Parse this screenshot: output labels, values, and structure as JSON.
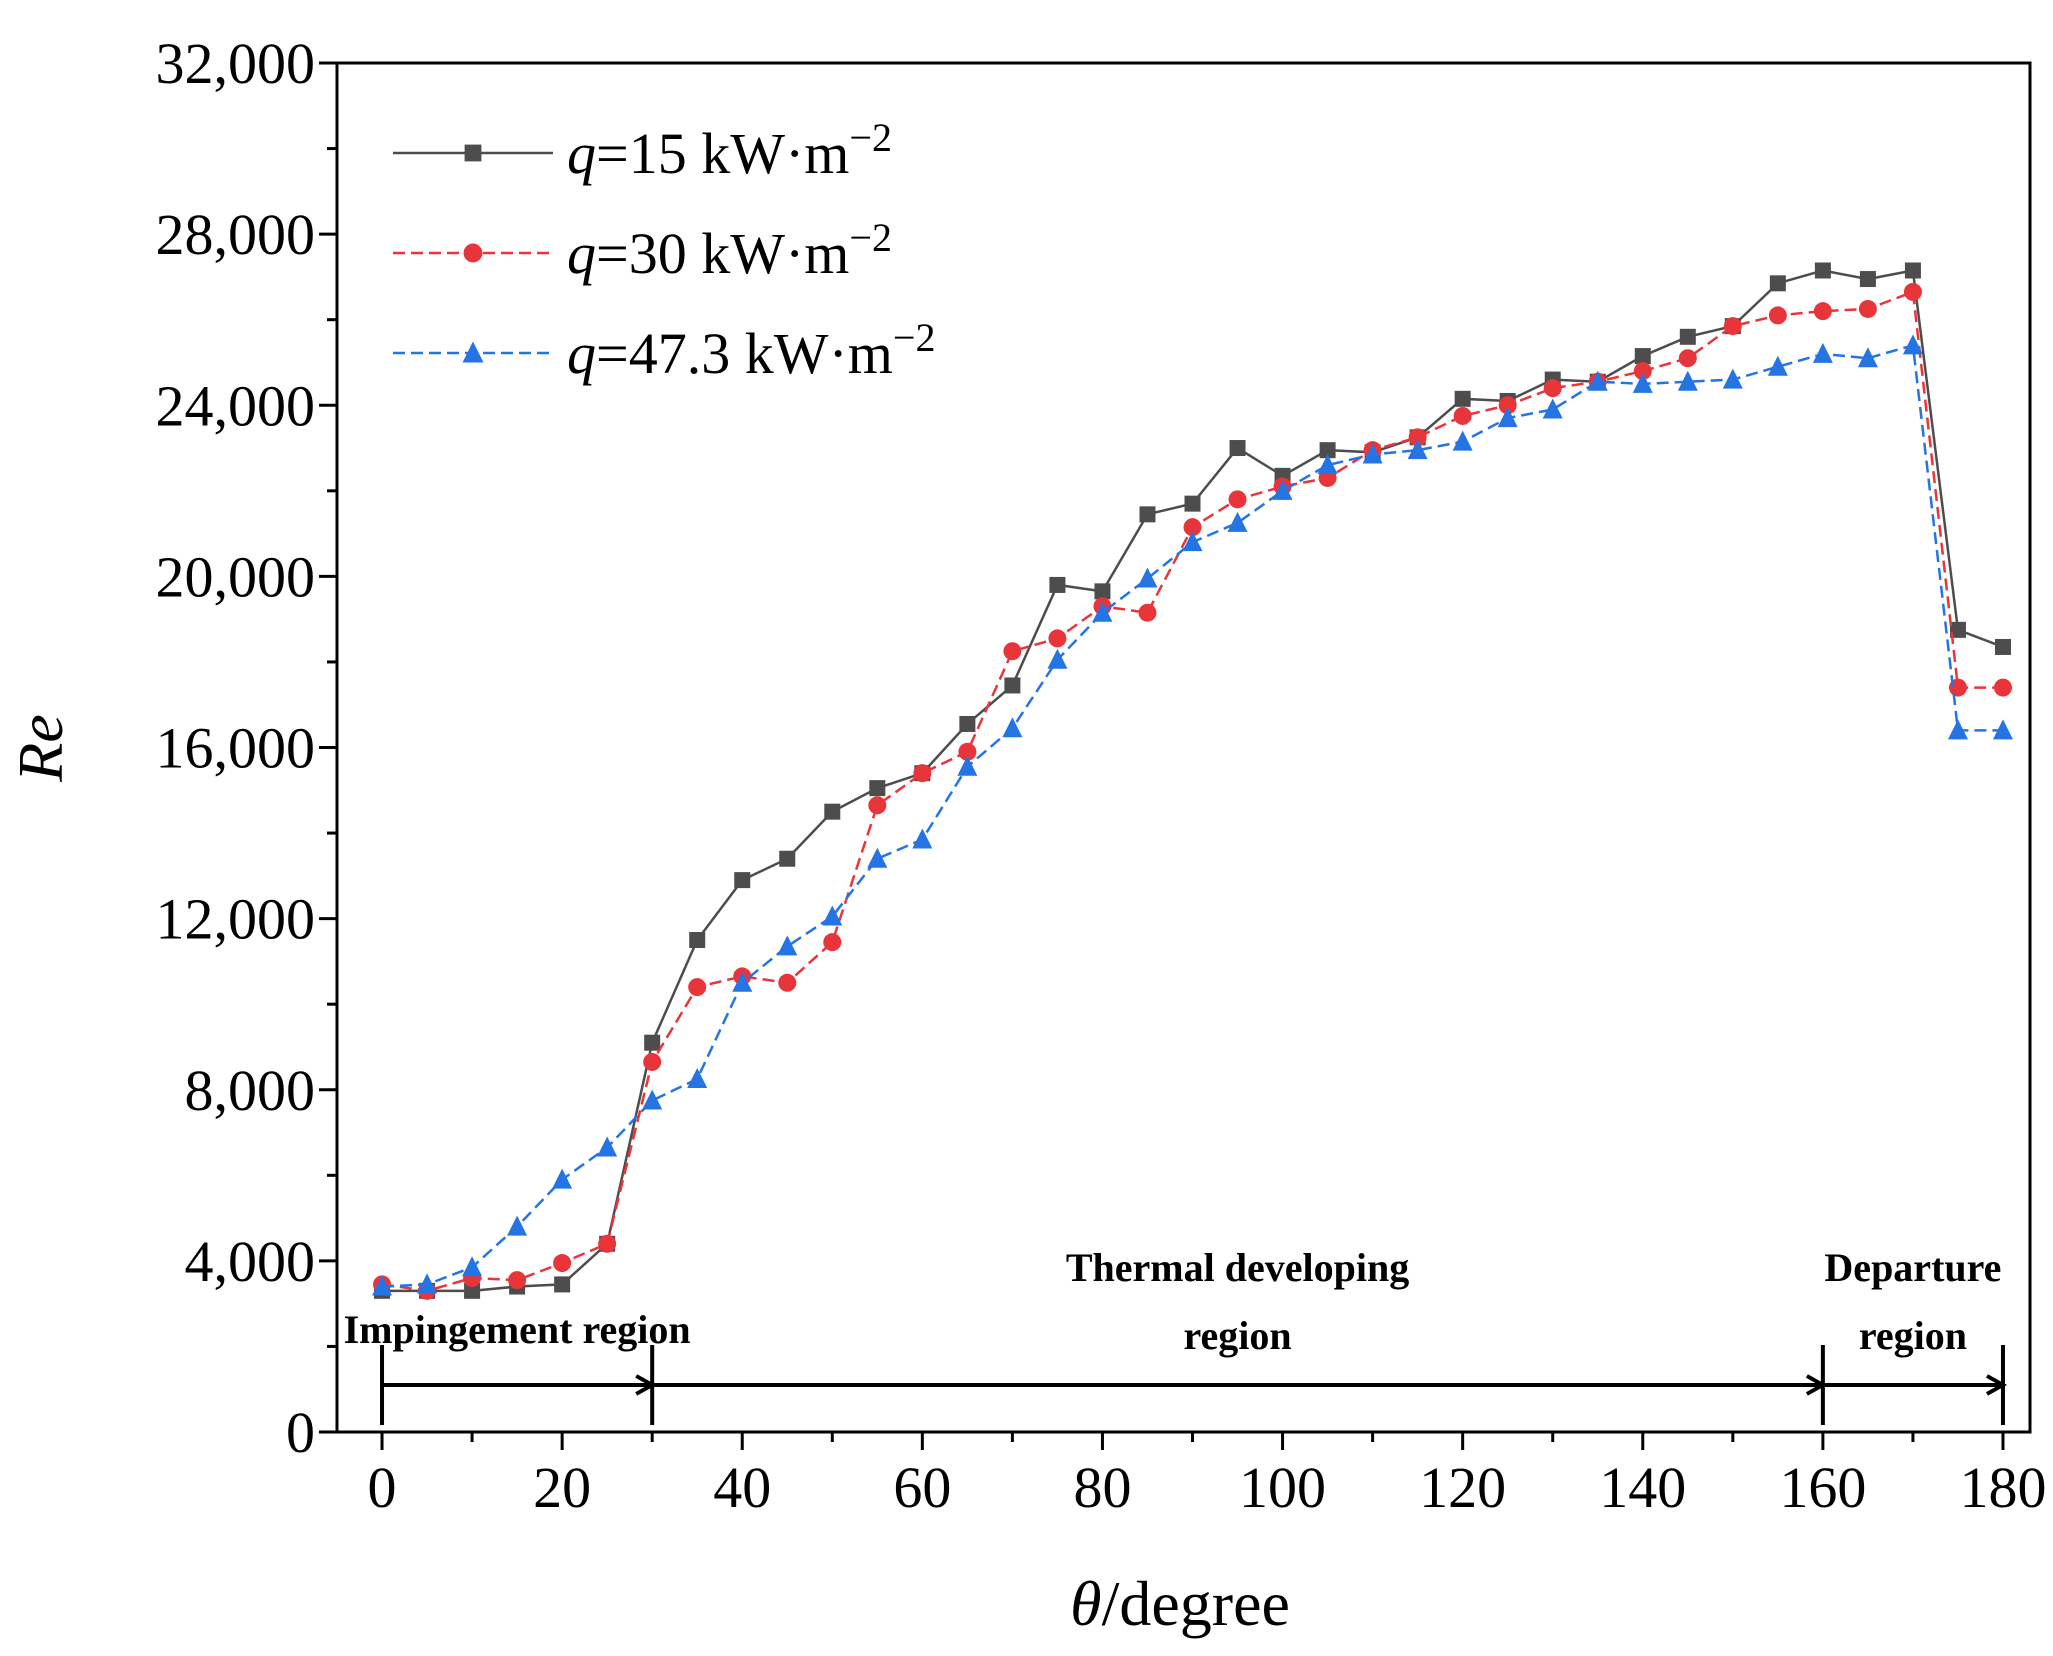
{
  "chart_data": {
    "type": "line",
    "title": "",
    "xlabel": "θ/degree",
    "xlabel_symbol": "θ",
    "xlabel_rest": "/degree",
    "ylabel": "Re",
    "xlim": [
      -5,
      183
    ],
    "ylim": [
      0,
      32000
    ],
    "xticks": [
      0,
      20,
      40,
      60,
      80,
      100,
      120,
      140,
      160,
      180
    ],
    "xtick_labels": [
      "0",
      "20",
      "40",
      "60",
      "80",
      "100",
      "120",
      "140",
      "160",
      "180"
    ],
    "yticks": [
      0,
      4000,
      8000,
      12000,
      16000,
      20000,
      24000,
      28000,
      32000
    ],
    "ytick_labels": [
      "0",
      "4,000",
      "8,000",
      "12,000",
      "16,000",
      "20,000",
      "24,000",
      "28,000",
      "32,000"
    ],
    "x": [
      0,
      5,
      10,
      15,
      20,
      25,
      30,
      35,
      40,
      45,
      50,
      55,
      60,
      65,
      70,
      75,
      80,
      85,
      90,
      95,
      100,
      105,
      110,
      115,
      120,
      125,
      130,
      135,
      140,
      145,
      150,
      155,
      160,
      165,
      170,
      175,
      180
    ],
    "series": [
      {
        "name": "q=15 kW·m−2",
        "legend_q": "q",
        "legend_value": "=15 kW·m",
        "legend_exp": "−2",
        "color": "#4d4d4d",
        "marker": "square",
        "line_style": "solid",
        "values": [
          3300,
          3300,
          3300,
          3400,
          3450,
          4400,
          9100,
          11500,
          12900,
          13400,
          14500,
          15050,
          15400,
          16550,
          17450,
          19800,
          19650,
          21450,
          21700,
          23000,
          22350,
          22950,
          22900,
          23250,
          24150,
          24100,
          24600,
          24550,
          25150,
          25600,
          25850,
          26850,
          27150,
          26950,
          27150,
          18750,
          18350
        ]
      },
      {
        "name": "q=30 kW·m−2",
        "legend_q": "q",
        "legend_value": "=30 kW·m",
        "legend_exp": "−2",
        "color": "#e8353a",
        "marker": "circle",
        "line_style": "dashed",
        "values": [
          3450,
          3300,
          3600,
          3550,
          3950,
          4400,
          8650,
          10400,
          10650,
          10500,
          11450,
          14650,
          15400,
          15900,
          18250,
          18550,
          19300,
          19150,
          21150,
          21800,
          22100,
          22300,
          22950,
          23250,
          23750,
          24000,
          24400,
          24550,
          24800,
          25100,
          25850,
          26100,
          26200,
          26250,
          26650,
          17400,
          17400
        ]
      },
      {
        "name": "q=47.3 kW·m−2",
        "legend_q": "q",
        "legend_value": "=47.3 kW·m",
        "legend_exp": "−2",
        "color": "#2474e4",
        "marker": "triangle",
        "line_style": "dashed",
        "values": [
          3400,
          3450,
          3850,
          4800,
          5900,
          6650,
          7750,
          8250,
          10500,
          11350,
          12050,
          13400,
          13850,
          15550,
          16450,
          18050,
          19150,
          19950,
          20800,
          21250,
          22000,
          22600,
          22850,
          22950,
          23150,
          23700,
          23900,
          24550,
          24500,
          24550,
          24600,
          24900,
          25200,
          25100,
          25400,
          16400,
          16400
        ]
      }
    ],
    "legend": {
      "position": "top-left"
    },
    "regions": [
      {
        "label_lines": [
          "Impingement region"
        ],
        "start": 0,
        "end": 30
      },
      {
        "label_lines": [
          "Thermal developing",
          "region"
        ],
        "start": 30,
        "end": 160
      },
      {
        "label_lines": [
          "Departure",
          "region"
        ],
        "start": 160,
        "end": 180
      }
    ],
    "region_baseline_y": 1100
  }
}
